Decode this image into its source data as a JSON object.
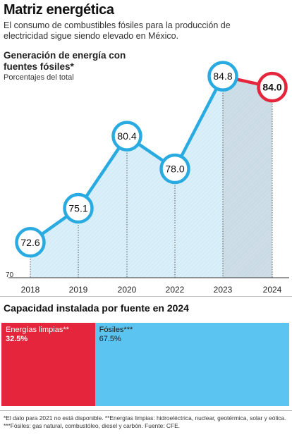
{
  "header": {
    "title": "Matriz energética",
    "subtitle": "El consumo de combustibles fósiles para la producción de electricidad sigue siendo elevado en México."
  },
  "chart_data": [
    {
      "type": "line",
      "title": "Generación de energía con fuentes fósiles*",
      "subtitle": "Porcentajes del total",
      "categories": [
        "2018",
        "2019",
        "2020",
        "2022",
        "2023",
        "2024"
      ],
      "values": [
        72.6,
        75.1,
        80.4,
        78.0,
        84.8,
        84.0
      ],
      "value_labels": [
        "72.6",
        "75.1",
        "80.4",
        "78.0",
        "84.8",
        "84.0"
      ],
      "ylim": [
        70,
        86
      ],
      "y_tick_labels": [
        "70"
      ],
      "highlight_last": true,
      "colors": {
        "line": "#29abe2",
        "highlight": "#e4253c",
        "fill": "#d4ecf8"
      }
    },
    {
      "type": "bar",
      "title": "Capacidad instalada por fuente en 2024",
      "stacked": true,
      "series": [
        {
          "name": "Energías limpias**",
          "value": 32.5,
          "label": "32.5%",
          "color": "#e4253c"
        },
        {
          "name": "Fósiles***",
          "value": 67.5,
          "label": "67.5%",
          "color": "#5cc4f0"
        }
      ]
    }
  ],
  "footnote": "*El dato para 2021 no está disponible. **Energías limpias: hidroeléctrica, nuclear, geotérmica, solar y eólica. ***Fósiles: gas natural, combustóleo, diesel y carbón. Fuente: CFE."
}
